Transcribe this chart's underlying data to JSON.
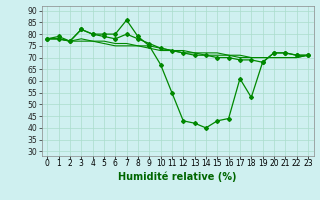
{
  "x": [
    0,
    1,
    2,
    3,
    4,
    5,
    6,
    7,
    8,
    9,
    10,
    11,
    12,
    13,
    14,
    15,
    16,
    17,
    18,
    19,
    20,
    21,
    22,
    23
  ],
  "line1": [
    78,
    79,
    77,
    82,
    80,
    80,
    80,
    86,
    79,
    75,
    67,
    55,
    43,
    42,
    40,
    43,
    44,
    61,
    53,
    68,
    72,
    72,
    71,
    71
  ],
  "line2": [
    78,
    78,
    77,
    82,
    80,
    79,
    78,
    80,
    78,
    76,
    74,
    73,
    72,
    71,
    71,
    70,
    70,
    69,
    69,
    68,
    72,
    72,
    71,
    71
  ],
  "line3": [
    78,
    78,
    77,
    78,
    77,
    77,
    76,
    76,
    75,
    75,
    74,
    73,
    73,
    72,
    72,
    72,
    71,
    71,
    70,
    70,
    70,
    70,
    70,
    71
  ],
  "line4": [
    78,
    78,
    77,
    77,
    77,
    76,
    75,
    75,
    75,
    74,
    73,
    73,
    72,
    72,
    71,
    71,
    71,
    70,
    70,
    70,
    70,
    70,
    70,
    71
  ],
  "bg_color": "#cff0f0",
  "grid_color": "#aaddcc",
  "line_color": "#008800",
  "ylim": [
    28,
    92
  ],
  "yticks": [
    30,
    35,
    40,
    45,
    50,
    55,
    60,
    65,
    70,
    75,
    80,
    85,
    90
  ],
  "xlabel": "Humidité relative (%)",
  "xlabel_color": "#006600",
  "xlabel_fontsize": 7,
  "tick_fontsize": 5.5,
  "marker_size": 2.0,
  "lw_main": 0.9,
  "lw_smooth": 0.8
}
